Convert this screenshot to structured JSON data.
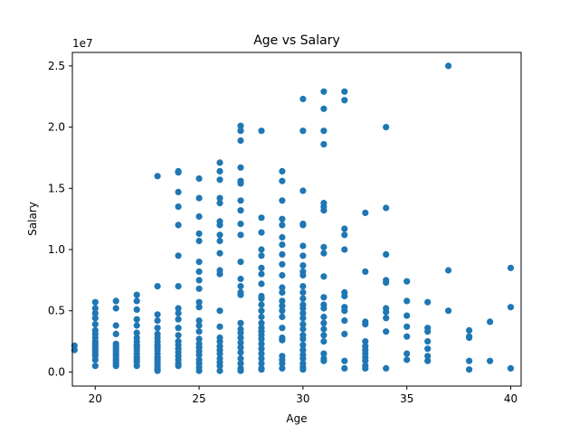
{
  "chart_data": {
    "type": "scatter",
    "title": "Age vs Salary",
    "xlabel": "Age",
    "ylabel": "Salary",
    "y_offset_label": "1e7",
    "xlim": [
      18.9,
      40.5
    ],
    "ylim": [
      -1150000,
      26100000
    ],
    "x_ticks": [
      20,
      25,
      30,
      35,
      40
    ],
    "x_tick_labels": [
      "20",
      "25",
      "30",
      "35",
      "40"
    ],
    "y_ticks": [
      0,
      5000000,
      10000000,
      15000000,
      20000000,
      25000000
    ],
    "y_tick_labels": [
      "0.0",
      "0.5",
      "1.0",
      "1.5",
      "2.0",
      "2.5"
    ],
    "grid": false,
    "marker_color": "#1f77b4",
    "points": [
      [
        19,
        2150000
      ],
      [
        19,
        1800000
      ],
      [
        20,
        5700000
      ],
      [
        20,
        5200000
      ],
      [
        20,
        4800000
      ],
      [
        20,
        4400000
      ],
      [
        20,
        3900000
      ],
      [
        20,
        3400000
      ],
      [
        20,
        3100000
      ],
      [
        20,
        2800000
      ],
      [
        20,
        2500000
      ],
      [
        20,
        2300000
      ],
      [
        20,
        2100000
      ],
      [
        20,
        1900000
      ],
      [
        20,
        1700000
      ],
      [
        20,
        1500000
      ],
      [
        20,
        1300000
      ],
      [
        20,
        1000000
      ],
      [
        20,
        500000
      ],
      [
        21,
        5800000
      ],
      [
        21,
        5200000
      ],
      [
        21,
        3800000
      ],
      [
        21,
        3100000
      ],
      [
        21,
        2300000
      ],
      [
        21,
        2100000
      ],
      [
        21,
        1900000
      ],
      [
        21,
        1700000
      ],
      [
        21,
        1500000
      ],
      [
        21,
        1300000
      ],
      [
        21,
        1100000
      ],
      [
        21,
        900000
      ],
      [
        21,
        700000
      ],
      [
        21,
        500000
      ],
      [
        22,
        6300000
      ],
      [
        22,
        5800000
      ],
      [
        22,
        5100000
      ],
      [
        22,
        4300000
      ],
      [
        22,
        3800000
      ],
      [
        22,
        3200000
      ],
      [
        22,
        2800000
      ],
      [
        22,
        2500000
      ],
      [
        22,
        2200000
      ],
      [
        22,
        2000000
      ],
      [
        22,
        1800000
      ],
      [
        22,
        1500000
      ],
      [
        22,
        1200000
      ],
      [
        22,
        1000000
      ],
      [
        22,
        800000
      ],
      [
        22,
        500000
      ],
      [
        23,
        16000000
      ],
      [
        23,
        7000000
      ],
      [
        23,
        4700000
      ],
      [
        23,
        4200000
      ],
      [
        23,
        3600000
      ],
      [
        23,
        3100000
      ],
      [
        23,
        2800000
      ],
      [
        23,
        2500000
      ],
      [
        23,
        2200000
      ],
      [
        23,
        2000000
      ],
      [
        23,
        1800000
      ],
      [
        23,
        1500000
      ],
      [
        23,
        1200000
      ],
      [
        23,
        1000000
      ],
      [
        23,
        800000
      ],
      [
        23,
        600000
      ],
      [
        23,
        400000
      ],
      [
        23,
        200000
      ],
      [
        23,
        100000
      ],
      [
        24,
        16400000
      ],
      [
        24,
        16300000
      ],
      [
        24,
        14700000
      ],
      [
        24,
        13500000
      ],
      [
        24,
        12000000
      ],
      [
        24,
        9500000
      ],
      [
        24,
        7000000
      ],
      [
        24,
        5200000
      ],
      [
        24,
        4800000
      ],
      [
        24,
        4300000
      ],
      [
        24,
        3600000
      ],
      [
        24,
        3000000
      ],
      [
        24,
        2500000
      ],
      [
        24,
        2200000
      ],
      [
        24,
        1900000
      ],
      [
        24,
        1600000
      ],
      [
        24,
        1300000
      ],
      [
        24,
        1000000
      ],
      [
        24,
        700000
      ],
      [
        24,
        500000
      ],
      [
        25,
        15800000
      ],
      [
        25,
        14200000
      ],
      [
        25,
        12700000
      ],
      [
        25,
        11300000
      ],
      [
        25,
        10700000
      ],
      [
        25,
        9000000
      ],
      [
        25,
        8200000
      ],
      [
        25,
        7500000
      ],
      [
        25,
        6800000
      ],
      [
        25,
        5700000
      ],
      [
        25,
        5300000
      ],
      [
        25,
        4200000
      ],
      [
        25,
        3800000
      ],
      [
        25,
        3300000
      ],
      [
        25,
        2700000
      ],
      [
        25,
        2300000
      ],
      [
        25,
        2000000
      ],
      [
        25,
        1700000
      ],
      [
        25,
        1400000
      ],
      [
        25,
        1000000
      ],
      [
        25,
        700000
      ],
      [
        25,
        400000
      ],
      [
        25,
        100000
      ],
      [
        26,
        17100000
      ],
      [
        26,
        16400000
      ],
      [
        26,
        15700000
      ],
      [
        26,
        14200000
      ],
      [
        26,
        13800000
      ],
      [
        26,
        12300000
      ],
      [
        26,
        12000000
      ],
      [
        26,
        11200000
      ],
      [
        26,
        10700000
      ],
      [
        26,
        9700000
      ],
      [
        26,
        8300000
      ],
      [
        26,
        8000000
      ],
      [
        26,
        5000000
      ],
      [
        26,
        3700000
      ],
      [
        26,
        2800000
      ],
      [
        26,
        2500000
      ],
      [
        26,
        2100000
      ],
      [
        26,
        1800000
      ],
      [
        26,
        1500000
      ],
      [
        26,
        1100000
      ],
      [
        26,
        800000
      ],
      [
        26,
        500000
      ],
      [
        26,
        100000
      ],
      [
        27,
        20100000
      ],
      [
        27,
        19700000
      ],
      [
        27,
        18900000
      ],
      [
        27,
        16700000
      ],
      [
        27,
        15600000
      ],
      [
        27,
        15400000
      ],
      [
        27,
        14000000
      ],
      [
        27,
        13200000
      ],
      [
        27,
        12100000
      ],
      [
        27,
        11200000
      ],
      [
        27,
        9000000
      ],
      [
        27,
        7600000
      ],
      [
        27,
        7000000
      ],
      [
        27,
        6500000
      ],
      [
        27,
        6300000
      ],
      [
        27,
        4000000
      ],
      [
        27,
        3500000
      ],
      [
        27,
        3200000
      ],
      [
        27,
        2800000
      ],
      [
        27,
        2400000
      ],
      [
        27,
        2000000
      ],
      [
        27,
        1600000
      ],
      [
        27,
        1100000
      ],
      [
        27,
        700000
      ],
      [
        27,
        300000
      ],
      [
        27,
        100000
      ],
      [
        28,
        19700000
      ],
      [
        28,
        12600000
      ],
      [
        28,
        11400000
      ],
      [
        28,
        10000000
      ],
      [
        28,
        9500000
      ],
      [
        28,
        8500000
      ],
      [
        28,
        8000000
      ],
      [
        28,
        7200000
      ],
      [
        28,
        6200000
      ],
      [
        28,
        6000000
      ],
      [
        28,
        5500000
      ],
      [
        28,
        5000000
      ],
      [
        28,
        4500000
      ],
      [
        28,
        4000000
      ],
      [
        28,
        3600000
      ],
      [
        28,
        3300000
      ],
      [
        28,
        3000000
      ],
      [
        28,
        2700000
      ],
      [
        28,
        2300000
      ],
      [
        28,
        1900000
      ],
      [
        28,
        1500000
      ],
      [
        28,
        1100000
      ],
      [
        28,
        700000
      ],
      [
        28,
        300000
      ],
      [
        28,
        200000
      ],
      [
        29,
        16400000
      ],
      [
        29,
        15600000
      ],
      [
        29,
        14000000
      ],
      [
        29,
        12500000
      ],
      [
        29,
        12000000
      ],
      [
        29,
        11000000
      ],
      [
        29,
        10400000
      ],
      [
        29,
        9600000
      ],
      [
        29,
        8800000
      ],
      [
        29,
        7900000
      ],
      [
        29,
        6900000
      ],
      [
        29,
        6500000
      ],
      [
        29,
        5800000
      ],
      [
        29,
        5400000
      ],
      [
        29,
        5000000
      ],
      [
        29,
        4500000
      ],
      [
        29,
        3600000
      ],
      [
        29,
        2800000
      ],
      [
        29,
        2600000
      ],
      [
        29,
        1300000
      ],
      [
        29,
        1000000
      ],
      [
        29,
        700000
      ],
      [
        29,
        300000
      ],
      [
        30,
        22300000
      ],
      [
        30,
        19700000
      ],
      [
        30,
        14800000
      ],
      [
        30,
        12100000
      ],
      [
        30,
        12000000
      ],
      [
        30,
        10300000
      ],
      [
        30,
        9500000
      ],
      [
        30,
        8700000
      ],
      [
        30,
        8200000
      ],
      [
        30,
        7900000
      ],
      [
        30,
        7000000
      ],
      [
        30,
        6500000
      ],
      [
        30,
        6000000
      ],
      [
        30,
        5500000
      ],
      [
        30,
        5200000
      ],
      [
        30,
        4800000
      ],
      [
        30,
        4400000
      ],
      [
        30,
        3900000
      ],
      [
        30,
        3500000
      ],
      [
        30,
        3000000
      ],
      [
        30,
        2700000
      ],
      [
        30,
        2200000
      ],
      [
        30,
        1800000
      ],
      [
        30,
        1400000
      ],
      [
        30,
        1100000
      ],
      [
        30,
        700000
      ],
      [
        30,
        400000
      ],
      [
        30,
        200000
      ],
      [
        31,
        22900000
      ],
      [
        31,
        21500000
      ],
      [
        31,
        19700000
      ],
      [
        31,
        18600000
      ],
      [
        31,
        13800000
      ],
      [
        31,
        13500000
      ],
      [
        31,
        13200000
      ],
      [
        31,
        10200000
      ],
      [
        31,
        9700000
      ],
      [
        31,
        7800000
      ],
      [
        31,
        6100000
      ],
      [
        31,
        5500000
      ],
      [
        31,
        5200000
      ],
      [
        31,
        4500000
      ],
      [
        31,
        4000000
      ],
      [
        31,
        3500000
      ],
      [
        31,
        3000000
      ],
      [
        31,
        2500000
      ],
      [
        31,
        1500000
      ],
      [
        31,
        1100000
      ],
      [
        31,
        900000
      ],
      [
        32,
        22900000
      ],
      [
        32,
        22200000
      ],
      [
        32,
        11700000
      ],
      [
        32,
        11200000
      ],
      [
        32,
        10000000
      ],
      [
        32,
        6500000
      ],
      [
        32,
        6200000
      ],
      [
        32,
        5300000
      ],
      [
        32,
        5000000
      ],
      [
        32,
        4200000
      ],
      [
        32,
        3100000
      ],
      [
        32,
        900000
      ],
      [
        32,
        300000
      ],
      [
        33,
        13000000
      ],
      [
        33,
        8200000
      ],
      [
        33,
        4100000
      ],
      [
        33,
        3900000
      ],
      [
        33,
        2500000
      ],
      [
        33,
        2100000
      ],
      [
        33,
        1800000
      ],
      [
        33,
        1500000
      ],
      [
        33,
        1200000
      ],
      [
        33,
        900000
      ],
      [
        33,
        500000
      ],
      [
        33,
        300000
      ],
      [
        34,
        20000000
      ],
      [
        34,
        13400000
      ],
      [
        34,
        9600000
      ],
      [
        34,
        7500000
      ],
      [
        34,
        7300000
      ],
      [
        34,
        5200000
      ],
      [
        34,
        4900000
      ],
      [
        34,
        4400000
      ],
      [
        34,
        3300000
      ],
      [
        34,
        300000
      ],
      [
        35,
        7400000
      ],
      [
        35,
        5800000
      ],
      [
        35,
        4600000
      ],
      [
        35,
        3700000
      ],
      [
        35,
        2900000
      ],
      [
        35,
        1500000
      ],
      [
        35,
        1000000
      ],
      [
        36,
        5700000
      ],
      [
        36,
        3600000
      ],
      [
        36,
        3300000
      ],
      [
        36,
        2500000
      ],
      [
        36,
        1900000
      ],
      [
        36,
        1300000
      ],
      [
        36,
        900000
      ],
      [
        37,
        25000000
      ],
      [
        37,
        8300000
      ],
      [
        37,
        5000000
      ],
      [
        38,
        3400000
      ],
      [
        38,
        2900000
      ],
      [
        38,
        2800000
      ],
      [
        38,
        900000
      ],
      [
        38,
        200000
      ],
      [
        39,
        4100000
      ],
      [
        39,
        900000
      ],
      [
        40,
        8500000
      ],
      [
        40,
        5300000
      ],
      [
        40,
        300000
      ]
    ]
  }
}
